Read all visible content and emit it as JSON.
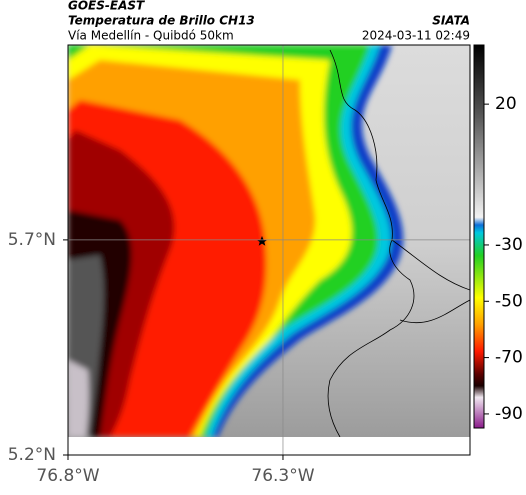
{
  "header": {
    "title": "GOES-EAST",
    "subtitle": "Temperatura de Brillo CH13",
    "route": "Vía Medellín - Quibdó 50km",
    "source": "SIATA",
    "timestamp": "2024-03-11 02:49"
  },
  "map": {
    "xlim": [
      -76.8,
      -75.865
    ],
    "ylim": [
      5.2,
      6.153
    ],
    "xticks": [
      {
        "value": -76.8,
        "label": "76.8°W"
      },
      {
        "value": -76.3,
        "label": "76.3°W"
      }
    ],
    "yticks": [
      {
        "value": 5.2,
        "label": "5.2°N"
      },
      {
        "value": 5.7,
        "label": "5.7°N"
      }
    ],
    "grid": true
  },
  "colorbar": {
    "lim": [
      -95,
      41
    ],
    "ticks": [
      20,
      -30,
      -50,
      -70,
      -90
    ]
  }
}
